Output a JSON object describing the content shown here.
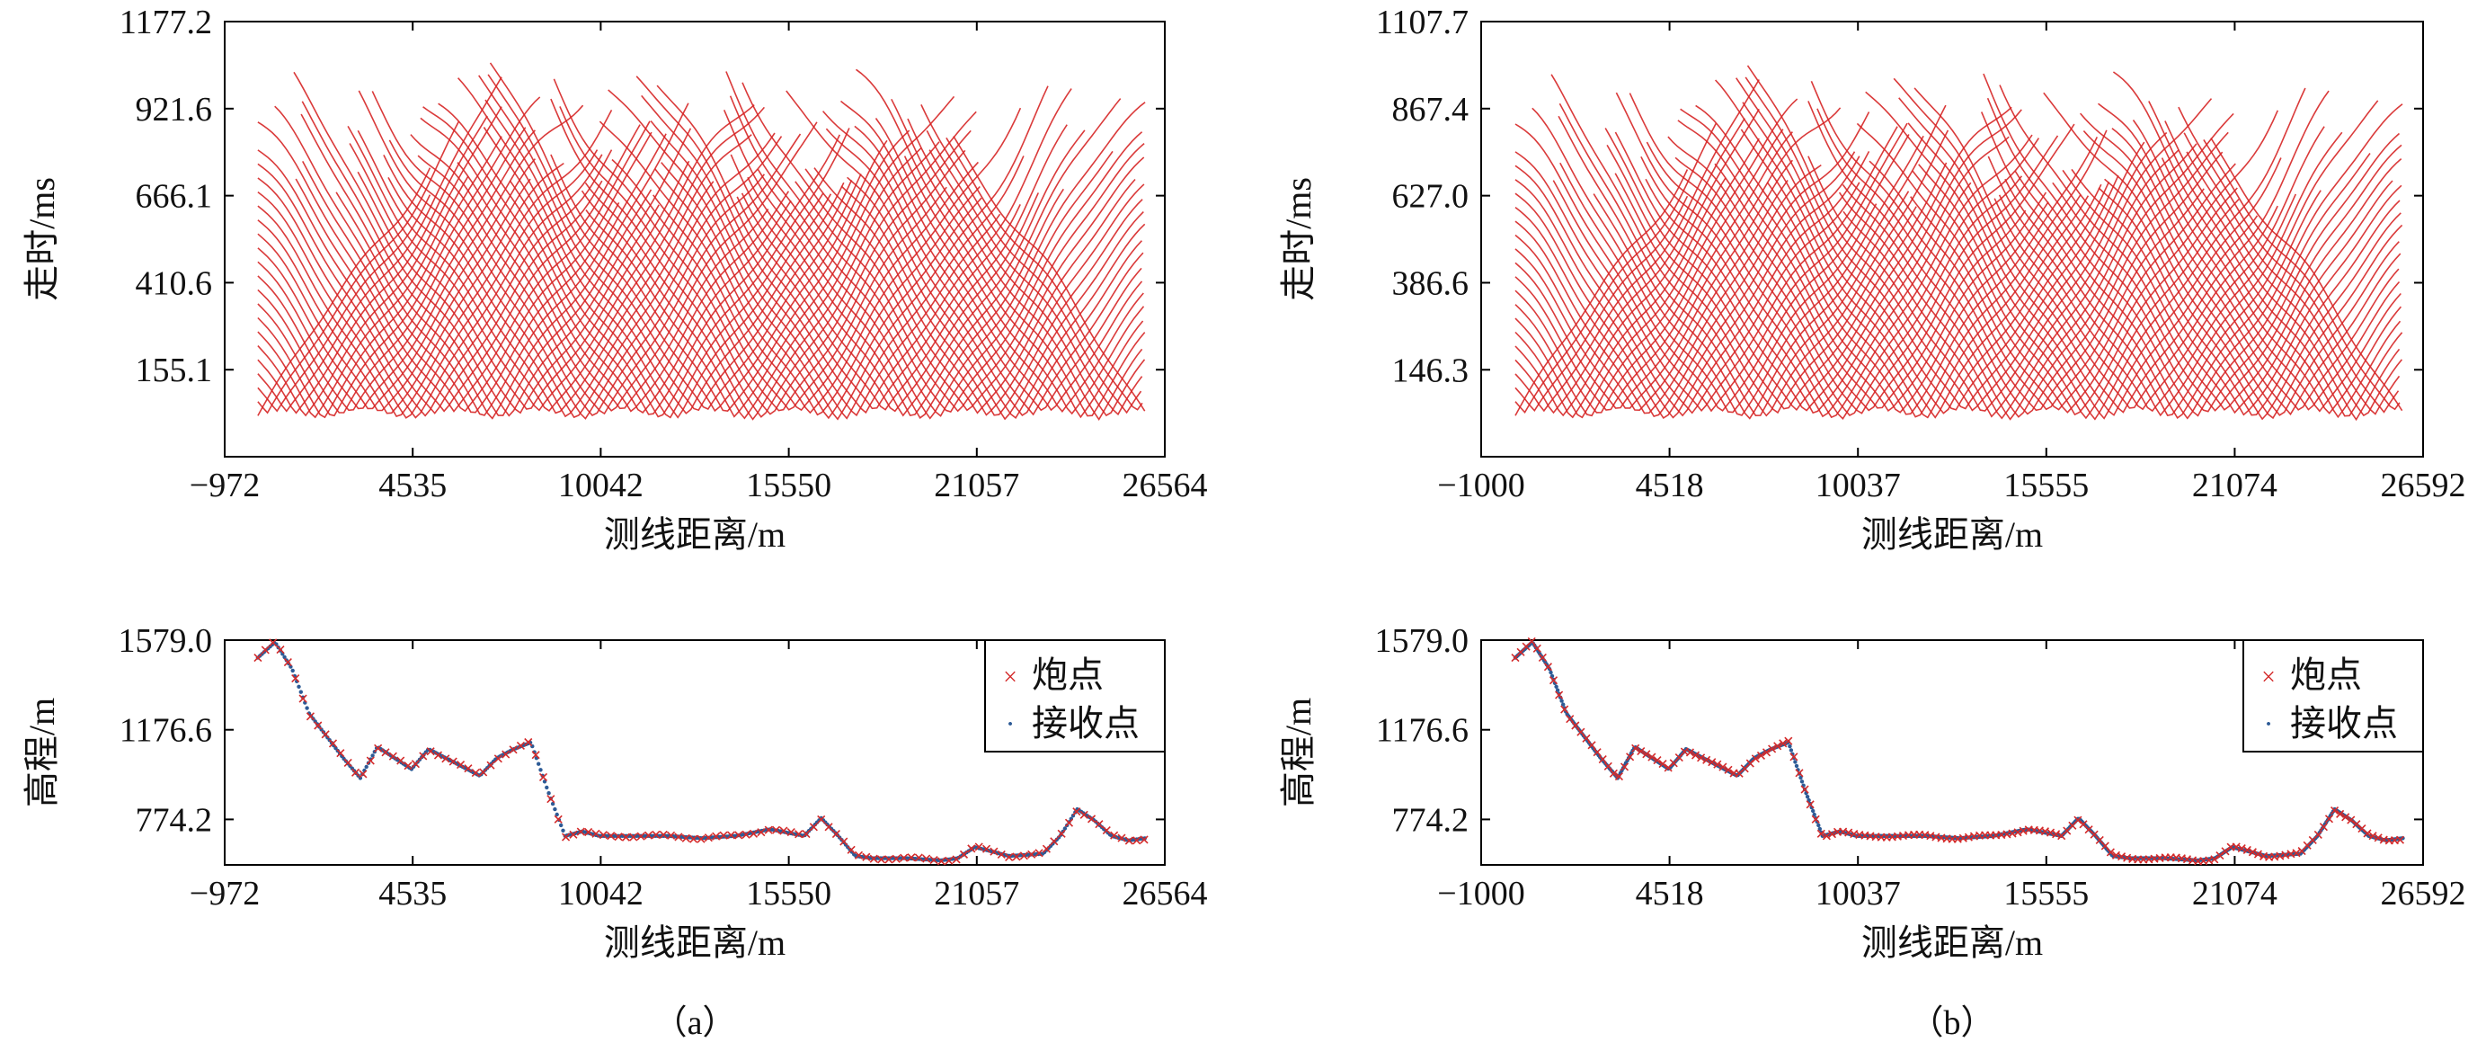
{
  "colors": {
    "shot": "#d42a2a",
    "receiver": "#2d5b96",
    "travel": "#d62525",
    "axis": "#000000"
  },
  "panel_labels": [
    "（a）",
    "（b）"
  ],
  "chart_data": [
    {
      "id": "a-travel",
      "type": "line",
      "description_free": true,
      "xlabel": "测线距离/m",
      "ylabel": "走时/ms",
      "xticks": [
        "−972",
        "4535",
        "10042",
        "15550",
        "21057",
        "26564"
      ],
      "yticks": [
        "1177.2",
        "921.6",
        "666.1",
        "410.6",
        "155.1"
      ],
      "xlim": [
        -972,
        26564
      ],
      "ylim": [
        -100.4,
        1177.2
      ],
      "series": [],
      "gather_data_range": [
        0,
        26000
      ],
      "gather_count": 96,
      "gather_offset_max": 5600,
      "time_floor": 20,
      "time_slope_ms_per_m": 0.15
    },
    {
      "id": "b-travel",
      "type": "line",
      "xlabel": "测线距离/m",
      "ylabel": "走时/ms",
      "xticks": [
        "−1000",
        "4518",
        "10037",
        "15555",
        "21074",
        "26592"
      ],
      "yticks": [
        "1107.7",
        "867.4",
        "627.0",
        "386.6",
        "146.3"
      ],
      "xlim": [
        -1000,
        26592
      ],
      "ylim": [
        -93.8,
        1107.7
      ],
      "series": [],
      "gather_data_range": [
        0,
        26000
      ],
      "gather_count": 96,
      "gather_offset_max": 5600,
      "time_floor": 20,
      "time_slope_ms_per_m": 0.14
    },
    {
      "id": "a-elev",
      "type": "scatter",
      "xlabel": "测线距离/m",
      "ylabel": "高程/m",
      "xticks": [
        "−972",
        "4535",
        "10042",
        "15550",
        "21057",
        "26564"
      ],
      "yticks": [
        "1579.0",
        "1176.6",
        "774.2"
      ],
      "xlim": [
        -972,
        26564
      ],
      "ylim": [
        570,
        1579
      ],
      "legend": {
        "position": "top-right",
        "entries": [
          {
            "symbol": "×",
            "label": "炮点"
          },
          {
            "symbol": "·",
            "label": "接收点"
          }
        ]
      },
      "profile": [
        [
          0,
          1500
        ],
        [
          500,
          1570
        ],
        [
          1000,
          1450
        ],
        [
          1500,
          1250
        ],
        [
          2000,
          1150
        ],
        [
          2500,
          1050
        ],
        [
          3000,
          960
        ],
        [
          3500,
          1100
        ],
        [
          4000,
          1050
        ],
        [
          4500,
          1000
        ],
        [
          5000,
          1090
        ],
        [
          5500,
          1050
        ],
        [
          6000,
          1010
        ],
        [
          6500,
          970
        ],
        [
          7000,
          1050
        ],
        [
          7500,
          1090
        ],
        [
          8000,
          1120
        ],
        [
          8500,
          900
        ],
        [
          9000,
          700
        ],
        [
          9500,
          720
        ],
        [
          10000,
          700
        ],
        [
          11000,
          700
        ],
        [
          12000,
          700
        ],
        [
          13000,
          690
        ],
        [
          14000,
          700
        ],
        [
          15000,
          730
        ],
        [
          16000,
          700
        ],
        [
          16500,
          780
        ],
        [
          17000,
          700
        ],
        [
          17500,
          610
        ],
        [
          18000,
          600
        ],
        [
          19000,
          600
        ],
        [
          20000,
          590
        ],
        [
          20500,
          600
        ],
        [
          21000,
          650
        ],
        [
          21500,
          630
        ],
        [
          22000,
          610
        ],
        [
          23000,
          620
        ],
        [
          23500,
          700
        ],
        [
          24000,
          820
        ],
        [
          24500,
          770
        ],
        [
          25000,
          700
        ],
        [
          25500,
          680
        ],
        [
          26000,
          690
        ]
      ],
      "shot_step": 220,
      "receiver_step": 60
    },
    {
      "id": "b-elev",
      "type": "scatter",
      "xlabel": "测线距离/m",
      "ylabel": "高程/m",
      "xticks": [
        "−1000",
        "4518",
        "10037",
        "15555",
        "21074",
        "26592"
      ],
      "yticks": [
        "1579.0",
        "1176.6",
        "774.2"
      ],
      "xlim": [
        -1000,
        26592
      ],
      "ylim": [
        570,
        1579
      ],
      "legend": {
        "position": "top-right",
        "entries": [
          {
            "symbol": "×",
            "label": "炮点"
          },
          {
            "symbol": "·",
            "label": "接收点"
          }
        ]
      },
      "profile": [
        [
          0,
          1500
        ],
        [
          500,
          1570
        ],
        [
          1000,
          1450
        ],
        [
          1500,
          1250
        ],
        [
          2000,
          1150
        ],
        [
          2500,
          1050
        ],
        [
          3000,
          960
        ],
        [
          3500,
          1100
        ],
        [
          4000,
          1050
        ],
        [
          4500,
          1000
        ],
        [
          5000,
          1090
        ],
        [
          5500,
          1050
        ],
        [
          6000,
          1010
        ],
        [
          6500,
          970
        ],
        [
          7000,
          1050
        ],
        [
          7500,
          1090
        ],
        [
          8000,
          1120
        ],
        [
          8500,
          900
        ],
        [
          9000,
          700
        ],
        [
          9500,
          720
        ],
        [
          10000,
          700
        ],
        [
          11000,
          700
        ],
        [
          12000,
          700
        ],
        [
          13000,
          690
        ],
        [
          14000,
          700
        ],
        [
          15000,
          730
        ],
        [
          16000,
          700
        ],
        [
          16500,
          780
        ],
        [
          17000,
          700
        ],
        [
          17500,
          610
        ],
        [
          18000,
          600
        ],
        [
          19000,
          600
        ],
        [
          20000,
          590
        ],
        [
          20500,
          600
        ],
        [
          21000,
          650
        ],
        [
          21500,
          630
        ],
        [
          22000,
          610
        ],
        [
          23000,
          620
        ],
        [
          23500,
          700
        ],
        [
          24000,
          820
        ],
        [
          24500,
          770
        ],
        [
          25000,
          700
        ],
        [
          25500,
          680
        ],
        [
          26000,
          690
        ]
      ],
      "shot_step": 160,
      "receiver_step": 40
    }
  ]
}
